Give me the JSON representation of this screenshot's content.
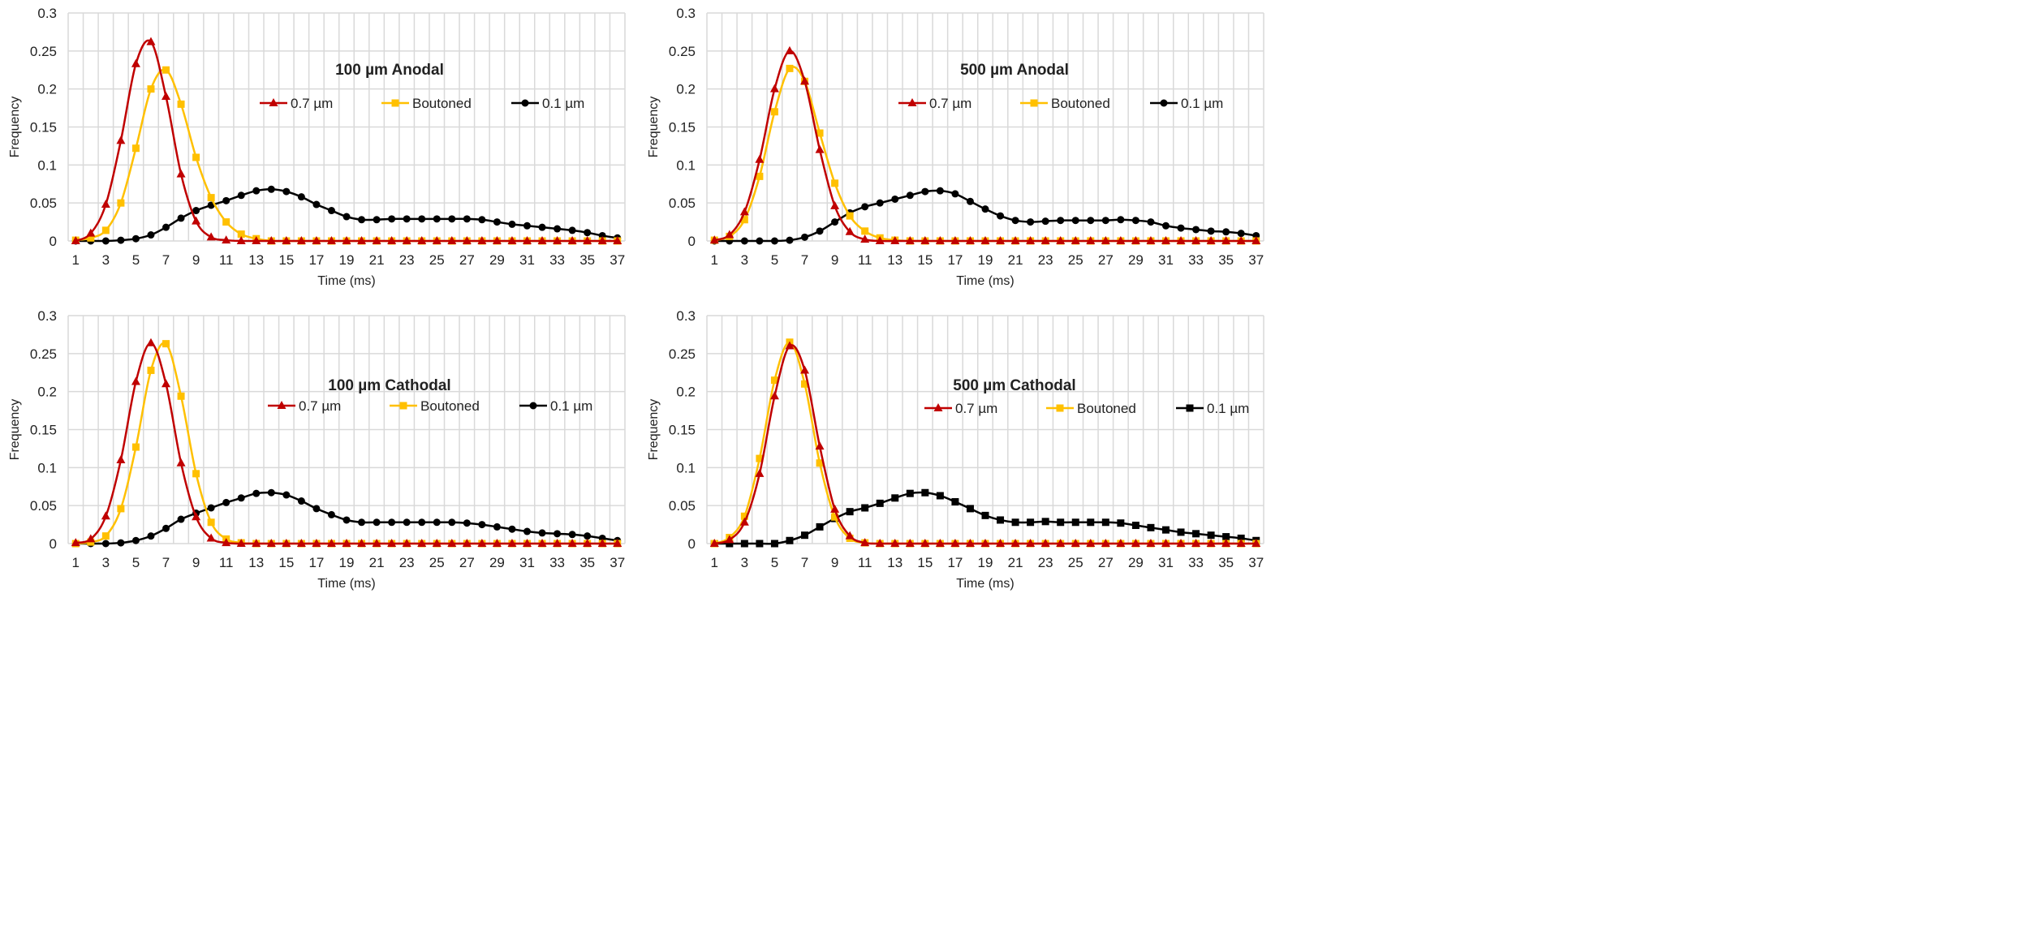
{
  "chart_data": [
    {
      "type": "line",
      "title": "100 µm Anodal",
      "xlabel": "Time (ms)",
      "ylabel": "Frequency",
      "ylim": [
        0,
        0.3
      ],
      "yticks": [
        "0",
        "0.05",
        "0.1",
        "0.15",
        "0.2",
        "0.25",
        "0.3"
      ],
      "x": [
        1,
        2,
        3,
        4,
        5,
        6,
        7,
        8,
        9,
        10,
        11,
        12,
        13,
        14,
        15,
        16,
        17,
        18,
        19,
        20,
        21,
        22,
        23,
        24,
        25,
        26,
        27,
        28,
        29,
        30,
        31,
        32,
        33,
        34,
        35,
        36,
        37
      ],
      "grid": true,
      "legend": "center",
      "series": [
        {
          "name": "0.7 µm",
          "color": "#c00000",
          "marker": "triangle",
          "values": [
            0,
            0.01,
            0.048,
            0.132,
            0.233,
            0.262,
            0.19,
            0.088,
            0.026,
            0.005,
            0.001,
            0,
            0,
            0,
            0,
            0,
            0,
            0,
            0,
            0,
            0,
            0,
            0,
            0,
            0,
            0,
            0,
            0,
            0,
            0,
            0,
            0,
            0,
            0,
            0,
            0,
            0
          ]
        },
        {
          "name": "Boutoned",
          "color": "#ffc000",
          "marker": "square",
          "values": [
            0.001,
            0.004,
            0.014,
            0.05,
            0.122,
            0.2,
            0.225,
            0.18,
            0.11,
            0.057,
            0.025,
            0.009,
            0.003,
            0,
            0,
            0,
            0,
            0,
            0,
            0,
            0,
            0,
            0,
            0,
            0,
            0,
            0,
            0,
            0,
            0,
            0,
            0,
            0,
            0,
            0,
            0,
            0
          ]
        },
        {
          "name": "0.1 µm",
          "color": "#000000",
          "marker": "circle",
          "values": [
            0,
            0,
            0,
            0.001,
            0.003,
            0.008,
            0.018,
            0.03,
            0.04,
            0.047,
            0.053,
            0.06,
            0.066,
            0.068,
            0.065,
            0.058,
            0.048,
            0.04,
            0.032,
            0.028,
            0.028,
            0.029,
            0.029,
            0.029,
            0.029,
            0.029,
            0.029,
            0.028,
            0.025,
            0.022,
            0.02,
            0.018,
            0.016,
            0.014,
            0.011,
            0.007,
            0.004
          ]
        }
      ]
    },
    {
      "type": "line",
      "title": "500 µm Anodal",
      "xlabel": "Time (ms)",
      "ylabel": "Frequency",
      "ylim": [
        0,
        0.3
      ],
      "yticks": [
        "0",
        "0.05",
        "0.1",
        "0.15",
        "0.2",
        "0.25",
        "0.3"
      ],
      "x": [
        1,
        2,
        3,
        4,
        5,
        6,
        7,
        8,
        9,
        10,
        11,
        12,
        13,
        14,
        15,
        16,
        17,
        18,
        19,
        20,
        21,
        22,
        23,
        24,
        25,
        26,
        27,
        28,
        29,
        30,
        31,
        32,
        33,
        34,
        35,
        36,
        37
      ],
      "grid": true,
      "legend": "center",
      "series": [
        {
          "name": "0.7 µm",
          "color": "#c00000",
          "marker": "triangle",
          "values": [
            0.001,
            0.008,
            0.038,
            0.107,
            0.2,
            0.25,
            0.21,
            0.12,
            0.046,
            0.012,
            0.002,
            0,
            0,
            0,
            0,
            0,
            0,
            0,
            0,
            0,
            0,
            0,
            0,
            0,
            0,
            0,
            0,
            0,
            0,
            0,
            0,
            0,
            0,
            0,
            0,
            0,
            0
          ]
        },
        {
          "name": "Boutoned",
          "color": "#ffc000",
          "marker": "square",
          "values": [
            0.001,
            0.006,
            0.028,
            0.085,
            0.17,
            0.227,
            0.21,
            0.142,
            0.076,
            0.033,
            0.013,
            0.004,
            0.001,
            0,
            0,
            0,
            0,
            0,
            0,
            0,
            0,
            0,
            0,
            0,
            0,
            0,
            0,
            0,
            0,
            0,
            0,
            0,
            0,
            0,
            0,
            0,
            0
          ]
        },
        {
          "name": "0.1 µm",
          "color": "#000000",
          "marker": "circle",
          "values": [
            0,
            0,
            0,
            0,
            0,
            0.001,
            0.005,
            0.013,
            0.025,
            0.037,
            0.045,
            0.05,
            0.055,
            0.06,
            0.065,
            0.066,
            0.062,
            0.052,
            0.042,
            0.033,
            0.027,
            0.025,
            0.026,
            0.027,
            0.027,
            0.027,
            0.027,
            0.028,
            0.027,
            0.025,
            0.02,
            0.017,
            0.015,
            0.013,
            0.012,
            0.01,
            0.007
          ]
        }
      ]
    },
    {
      "type": "line",
      "title": "100 µm Cathodal",
      "xlabel": "Time (ms)",
      "ylabel": "Frequency",
      "ylim": [
        0,
        0.3
      ],
      "yticks": [
        "0",
        "0.05",
        "0.1",
        "0.15",
        "0.2",
        "0.25",
        "0.3"
      ],
      "x": [
        1,
        2,
        3,
        4,
        5,
        6,
        7,
        8,
        9,
        10,
        11,
        12,
        13,
        14,
        15,
        16,
        17,
        18,
        19,
        20,
        21,
        22,
        23,
        24,
        25,
        26,
        27,
        28,
        29,
        30,
        31,
        32,
        33,
        34,
        35,
        36,
        37
      ],
      "grid": true,
      "legend": "center",
      "series": [
        {
          "name": "0.7 µm",
          "color": "#c00000",
          "marker": "triangle",
          "values": [
            0.001,
            0.006,
            0.036,
            0.11,
            0.213,
            0.264,
            0.21,
            0.106,
            0.035,
            0.007,
            0.001,
            0,
            0,
            0,
            0,
            0,
            0,
            0,
            0,
            0,
            0,
            0,
            0,
            0,
            0,
            0,
            0,
            0,
            0,
            0,
            0,
            0,
            0,
            0,
            0,
            0,
            0
          ]
        },
        {
          "name": "Boutoned",
          "color": "#ffc000",
          "marker": "square",
          "values": [
            0,
            0.002,
            0.01,
            0.046,
            0.127,
            0.228,
            0.263,
            0.194,
            0.092,
            0.028,
            0.006,
            0.001,
            0,
            0,
            0,
            0,
            0,
            0,
            0,
            0,
            0,
            0,
            0,
            0,
            0,
            0,
            0,
            0,
            0,
            0,
            0,
            0,
            0,
            0,
            0,
            0,
            0
          ]
        },
        {
          "name": "0.1 µm",
          "color": "#000000",
          "marker": "circle",
          "values": [
            0,
            0,
            0,
            0.001,
            0.004,
            0.01,
            0.02,
            0.032,
            0.04,
            0.047,
            0.054,
            0.06,
            0.066,
            0.067,
            0.064,
            0.056,
            0.046,
            0.038,
            0.031,
            0.028,
            0.028,
            0.028,
            0.028,
            0.028,
            0.028,
            0.028,
            0.027,
            0.025,
            0.022,
            0.019,
            0.016,
            0.014,
            0.013,
            0.012,
            0.01,
            0.007,
            0.004
          ]
        }
      ]
    },
    {
      "type": "line",
      "title": "500 µm Cathodal",
      "xlabel": "Time (ms)",
      "ylabel": "Frequency",
      "ylim": [
        0,
        0.3
      ],
      "yticks": [
        "0",
        "0.05",
        "0.1",
        "0.15",
        "0.2",
        "0.25",
        "0.3"
      ],
      "x": [
        1,
        2,
        3,
        4,
        5,
        6,
        7,
        8,
        9,
        10,
        11,
        12,
        13,
        14,
        15,
        16,
        17,
        18,
        19,
        20,
        21,
        22,
        23,
        24,
        25,
        26,
        27,
        28,
        29,
        30,
        31,
        32,
        33,
        34,
        35,
        36,
        37
      ],
      "grid": true,
      "legend": "center",
      "series": [
        {
          "name": "0.7 µm",
          "color": "#c00000",
          "marker": "triangle",
          "values": [
            0,
            0.005,
            0.028,
            0.092,
            0.194,
            0.26,
            0.228,
            0.128,
            0.045,
            0.01,
            0.001,
            0,
            0,
            0,
            0,
            0,
            0,
            0,
            0,
            0,
            0,
            0,
            0,
            0,
            0,
            0,
            0,
            0,
            0,
            0,
            0,
            0,
            0,
            0,
            0,
            0,
            0
          ]
        },
        {
          "name": "Boutoned",
          "color": "#ffc000",
          "marker": "square",
          "values": [
            0,
            0.008,
            0.036,
            0.112,
            0.215,
            0.265,
            0.21,
            0.106,
            0.035,
            0.007,
            0.001,
            0,
            0,
            0,
            0,
            0,
            0,
            0,
            0,
            0,
            0,
            0,
            0,
            0,
            0,
            0,
            0,
            0,
            0,
            0,
            0,
            0,
            0,
            0,
            0,
            0,
            0
          ]
        },
        {
          "name": "0.1 µm",
          "color": "#000000",
          "marker": "square",
          "values": [
            0,
            0,
            0,
            0,
            0,
            0.004,
            0.011,
            0.022,
            0.033,
            0.042,
            0.047,
            0.053,
            0.06,
            0.066,
            0.067,
            0.063,
            0.055,
            0.046,
            0.037,
            0.031,
            0.028,
            0.028,
            0.029,
            0.028,
            0.028,
            0.028,
            0.028,
            0.027,
            0.024,
            0.021,
            0.018,
            0.015,
            0.013,
            0.011,
            0.009,
            0.007,
            0.004
          ]
        }
      ]
    }
  ]
}
